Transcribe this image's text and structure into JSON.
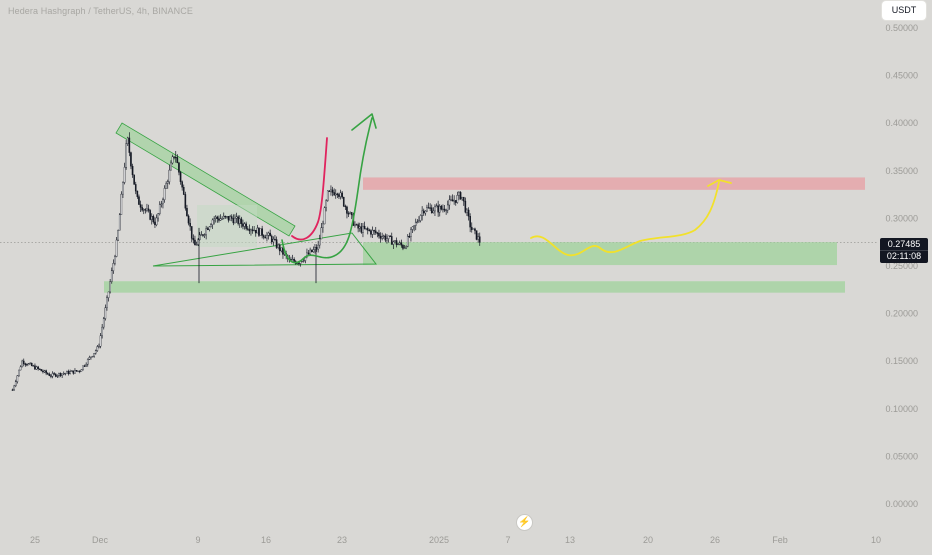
{
  "header": {
    "symbol_title": "Hedera Hashgraph / TetherUS, 4h, BINANCE",
    "currency_button": "USDT"
  },
  "price_badge": {
    "price": "0.27485",
    "countdown": "02:11:08"
  },
  "logo_icon": "tradingview-lightning-icon",
  "colors": {
    "background": "#d9d8d5",
    "candle": "#131722",
    "support_zone": "#a6d3a2",
    "resistance_zone": "#e5a6a9",
    "pattern_fill": "#a6d3a2",
    "green_line": "#37a343",
    "red_line": "#e0245e",
    "yellow_line": "#f2e12b",
    "axis_text": "#9c9b97"
  },
  "chart_data": {
    "type": "candlestick",
    "title": "Hedera Hashgraph / TetherUS, 4h, BINANCE",
    "ylim": [
      0,
      0.5
    ],
    "y_ticks": [
      "0.50000",
      "0.45000",
      "0.40000",
      "0.35000",
      "0.30000",
      "0.25000",
      "0.20000",
      "0.15000",
      "0.10000",
      "0.05000",
      "0.00000"
    ],
    "x_ticks": [
      "25",
      "Dec",
      "9",
      "16",
      "23",
      "2025",
      "7",
      "13",
      "20",
      "26",
      "Feb",
      "10"
    ],
    "last_price": 0.27485,
    "price_path": [
      {
        "date": "2024-11-21",
        "close": 0.12
      },
      {
        "date": "2024-11-22",
        "close": 0.15
      },
      {
        "date": "2024-11-25",
        "close": 0.135
      },
      {
        "date": "2024-11-28",
        "close": 0.14
      },
      {
        "date": "2024-11-30",
        "close": 0.165
      },
      {
        "date": "2024-12-01",
        "close": 0.22
      },
      {
        "date": "2024-12-02",
        "close": 0.28
      },
      {
        "date": "2024-12-03",
        "close": 0.385
      },
      {
        "date": "2024-12-04",
        "close": 0.32
      },
      {
        "date": "2024-12-06",
        "close": 0.295
      },
      {
        "date": "2024-12-08",
        "close": 0.37
      },
      {
        "date": "2024-12-09",
        "close": 0.32
      },
      {
        "date": "2024-12-10",
        "close": 0.27
      },
      {
        "date": "2024-12-12",
        "close": 0.3
      },
      {
        "date": "2024-12-14",
        "close": 0.3
      },
      {
        "date": "2024-12-16",
        "close": 0.29
      },
      {
        "date": "2024-12-18",
        "close": 0.28
      },
      {
        "date": "2024-12-20",
        "close": 0.255
      },
      {
        "date": "2024-12-21",
        "close": 0.255
      },
      {
        "date": "2024-12-23",
        "close": 0.27
      },
      {
        "date": "2024-12-24",
        "close": 0.325
      },
      {
        "date": "2024-12-25",
        "close": 0.33
      },
      {
        "date": "2024-12-27",
        "close": 0.29
      },
      {
        "date": "2024-12-29",
        "close": 0.285
      },
      {
        "date": "2025-01-01",
        "close": 0.27
      },
      {
        "date": "2025-01-03",
        "close": 0.31
      },
      {
        "date": "2025-01-05",
        "close": 0.31
      },
      {
        "date": "2025-01-07",
        "close": 0.325
      },
      {
        "date": "2025-01-08",
        "close": 0.29
      },
      {
        "date": "2025-01-09",
        "close": 0.27485
      }
    ],
    "zones": [
      {
        "kind": "resistance",
        "from": "2024-12-24",
        "to": "2025-01-31",
        "low": 0.33,
        "high": 0.343
      },
      {
        "kind": "support",
        "from": "2024-12-23",
        "to": "2025-01-30",
        "low": 0.251,
        "high": 0.275
      },
      {
        "kind": "support",
        "from": "2024-11-30",
        "to": "2025-01-31",
        "low": 0.222,
        "high": 0.234
      }
    ],
    "drawings": [
      {
        "kind": "descending-channel",
        "color": "green"
      },
      {
        "kind": "triangle",
        "color": "green"
      },
      {
        "kind": "projection-arrow",
        "color": "green"
      },
      {
        "kind": "projection-line",
        "color": "red"
      },
      {
        "kind": "projection-arrow",
        "color": "yellow"
      }
    ]
  }
}
